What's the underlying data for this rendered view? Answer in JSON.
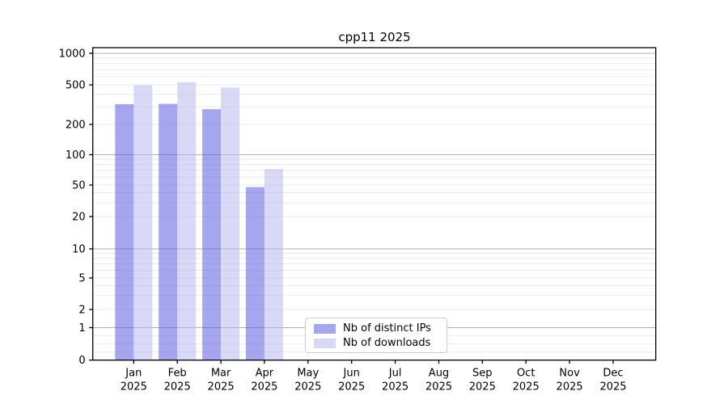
{
  "figure": {
    "background_color": "#ffffff"
  },
  "chart_data": {
    "type": "bar",
    "title": "cpp11 2025",
    "xlabel": "",
    "ylabel": "",
    "categories": [
      "Jan",
      "Feb",
      "Mar",
      "Apr",
      "May",
      "Jun",
      "Jul",
      "Aug",
      "Sep",
      "Oct",
      "Nov",
      "Dec"
    ],
    "category_year_label": "2025",
    "series": [
      {
        "name": "Nb of distinct IPs",
        "color_solid": "#a5a5f0",
        "color_rgba": "rgba(75,75,225,0.5)",
        "values": [
          320,
          322,
          285,
          47,
          null,
          null,
          null,
          null,
          null,
          null,
          null,
          null
        ]
      },
      {
        "name": "Nb of downloads",
        "color_solid": "#d9d9f7",
        "color_rgba": "rgba(179,179,239,0.5)",
        "values": [
          495,
          530,
          470,
          72,
          null,
          null,
          null,
          null,
          null,
          null,
          null,
          null
        ]
      }
    ],
    "y_axis": {
      "scale": "symlog",
      "tick_values": [
        0,
        1,
        2,
        5,
        10,
        20,
        50,
        100,
        200,
        500,
        1000
      ],
      "tick_labels": [
        "0",
        "1",
        "2",
        "5",
        "10",
        "20",
        "50",
        "100",
        "200",
        "500",
        "1000"
      ],
      "major_gridline_values": [
        1,
        10,
        100,
        1000
      ],
      "range": [
        0,
        1150
      ]
    },
    "legend": {
      "position": "lower center-left inside axes",
      "entries": [
        "Nb of distinct IPs",
        "Nb of downloads"
      ]
    },
    "grid": {
      "shown": true,
      "major_color": "#b2b2b2",
      "minor_color": "#ebebeb"
    },
    "spine_color": "#000000"
  }
}
